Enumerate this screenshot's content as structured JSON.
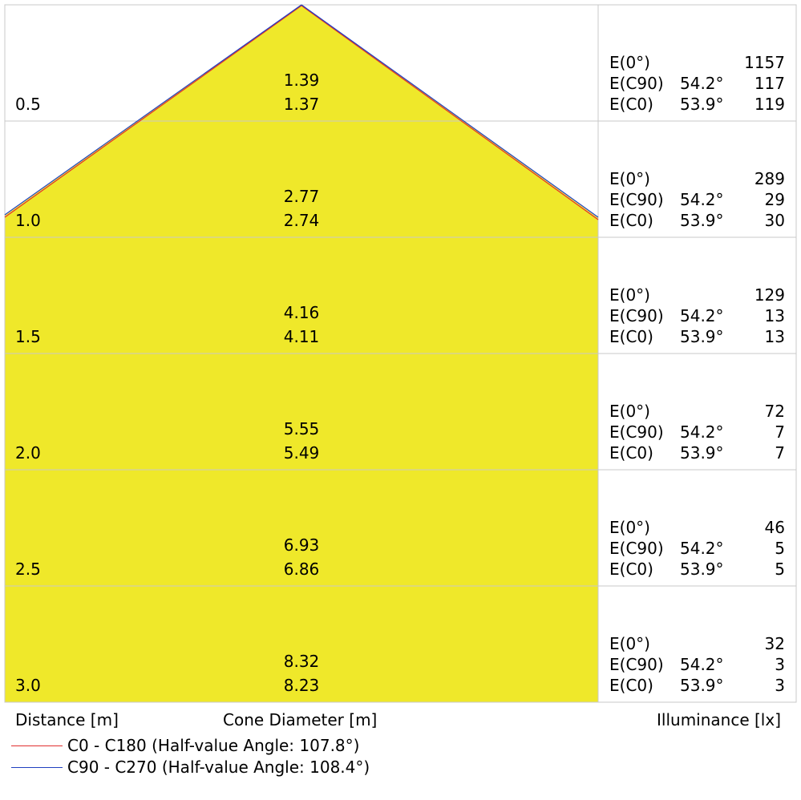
{
  "distances": [
    "0.5",
    "1.0",
    "1.5",
    "2.0",
    "2.5",
    "3.0"
  ],
  "cone_diameters": [
    {
      "c90": "1.39",
      "c0": "1.37"
    },
    {
      "c90": "2.77",
      "c0": "2.74"
    },
    {
      "c90": "4.16",
      "c0": "4.11"
    },
    {
      "c90": "5.55",
      "c0": "5.49"
    },
    {
      "c90": "6.93",
      "c0": "6.86"
    },
    {
      "c90": "8.32",
      "c0": "8.23"
    }
  ],
  "illuminance": [
    {
      "e0": "1157",
      "ec90": "117",
      "ec0": "119"
    },
    {
      "e0": "289",
      "ec90": "29",
      "ec0": "30"
    },
    {
      "e0": "129",
      "ec90": "13",
      "ec0": "13"
    },
    {
      "e0": "72",
      "ec90": "7",
      "ec0": "7"
    },
    {
      "e0": "46",
      "ec90": "5",
      "ec0": "5"
    },
    {
      "e0": "32",
      "ec90": "3",
      "ec0": "3"
    }
  ],
  "labels": {
    "e0": "E(0°)",
    "ec90": "E(C90)",
    "ec0": "E(C0)",
    "angle_c90": "54.2°",
    "angle_c0": "53.9°"
  },
  "footer": {
    "distance_label": "Distance [m]",
    "cone_label": "Cone Diameter [m]",
    "illuminance_label": "Illuminance [lx]"
  },
  "legend": [
    {
      "label": "C0 - C180 (Half-value Angle: 107.8°)",
      "color": "#e03030"
    },
    {
      "label": "C90 - C270 (Half-value Angle: 108.4°)",
      "color": "#2040c0"
    }
  ],
  "colors": {
    "cone_fill": "#efe82a",
    "grid": "#c8c8c8"
  }
}
